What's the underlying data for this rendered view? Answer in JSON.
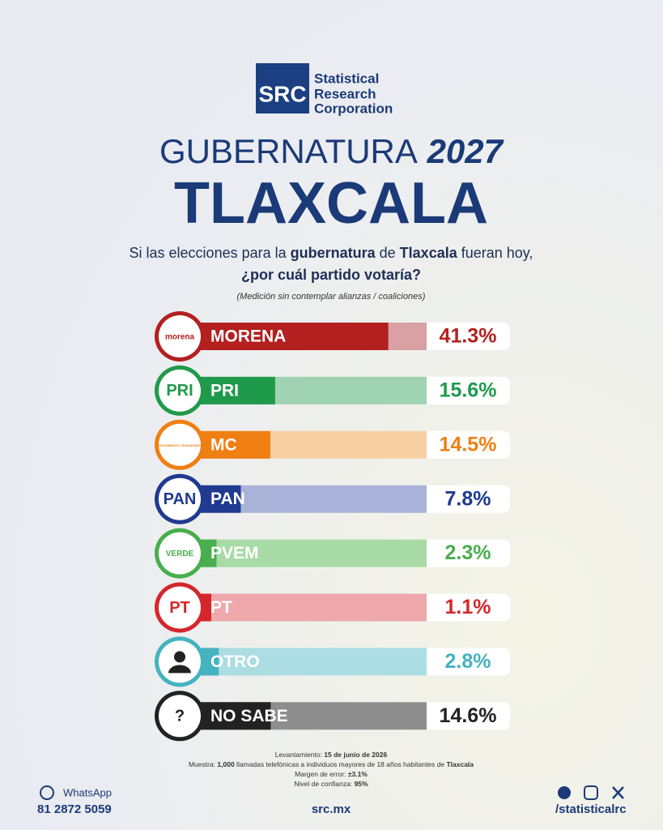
{
  "brand": {
    "logo": "SRC",
    "lines": [
      "Statistical",
      "Research",
      "Corporation"
    ]
  },
  "header": {
    "title_light": "GUBERNATURA",
    "title_bold": "2027",
    "state": "TLAXCALA"
  },
  "question": [
    "Si las elecciones para la ",
    "gubernatura",
    " de ",
    "Tlaxcala",
    " fueran hoy,",
    "¿por cuál partido votaría?"
  ],
  "note": "(Medición sin contemplar alianzas / coaliciones)",
  "chart_data": {
    "type": "bar",
    "orientation": "horizontal",
    "categories": [
      "MORENA",
      "PRI",
      "MC",
      "PAN",
      "PVEM",
      "PT",
      "OTRO",
      "NO SABE"
    ],
    "values": [
      41.3,
      15.6,
      14.5,
      7.8,
      2.3,
      1.1,
      2.8,
      14.6
    ],
    "value_labels": [
      "41.3%",
      "15.6%",
      "14.5%",
      "7.8%",
      "2.3%",
      "1.1%",
      "2.8%",
      "14.6%"
    ],
    "logo_texts": [
      "morena",
      "PRI",
      "MOVIMIENTO CIUDADANO",
      "PAN",
      "VERDE",
      "PT",
      "",
      "?"
    ],
    "colors": [
      "#b3201f",
      "#1f9a4b",
      "#f07f13",
      "#1f3a8f",
      "#48ae4e",
      "#d4262c",
      "#45b3c0",
      "#222222"
    ],
    "light_colors": [
      "#d9a1a4",
      "#9fd3b1",
      "#f7cfa3",
      "#a9b2d8",
      "#a8dba6",
      "#eea8ab",
      "#abdde2",
      "#8e8e8e"
    ],
    "xlim": [
      0,
      50
    ]
  },
  "footer": {
    "lines": [
      [
        "Levantamiento: ",
        "15 de junio de 2026"
      ],
      [
        "Muestra: ",
        "1,000",
        " llamadas telefónicas a individuos mayores de 18 años habitantes de ",
        "Tlaxcala"
      ],
      [
        "Margen de error: ",
        "±3.1%"
      ],
      [
        "Nivel de confianza: ",
        "95%"
      ]
    ],
    "whatsapp": "WhatsApp",
    "phone": "81 2872 5059",
    "site": "src.mx",
    "social": "/statisticalrc"
  }
}
